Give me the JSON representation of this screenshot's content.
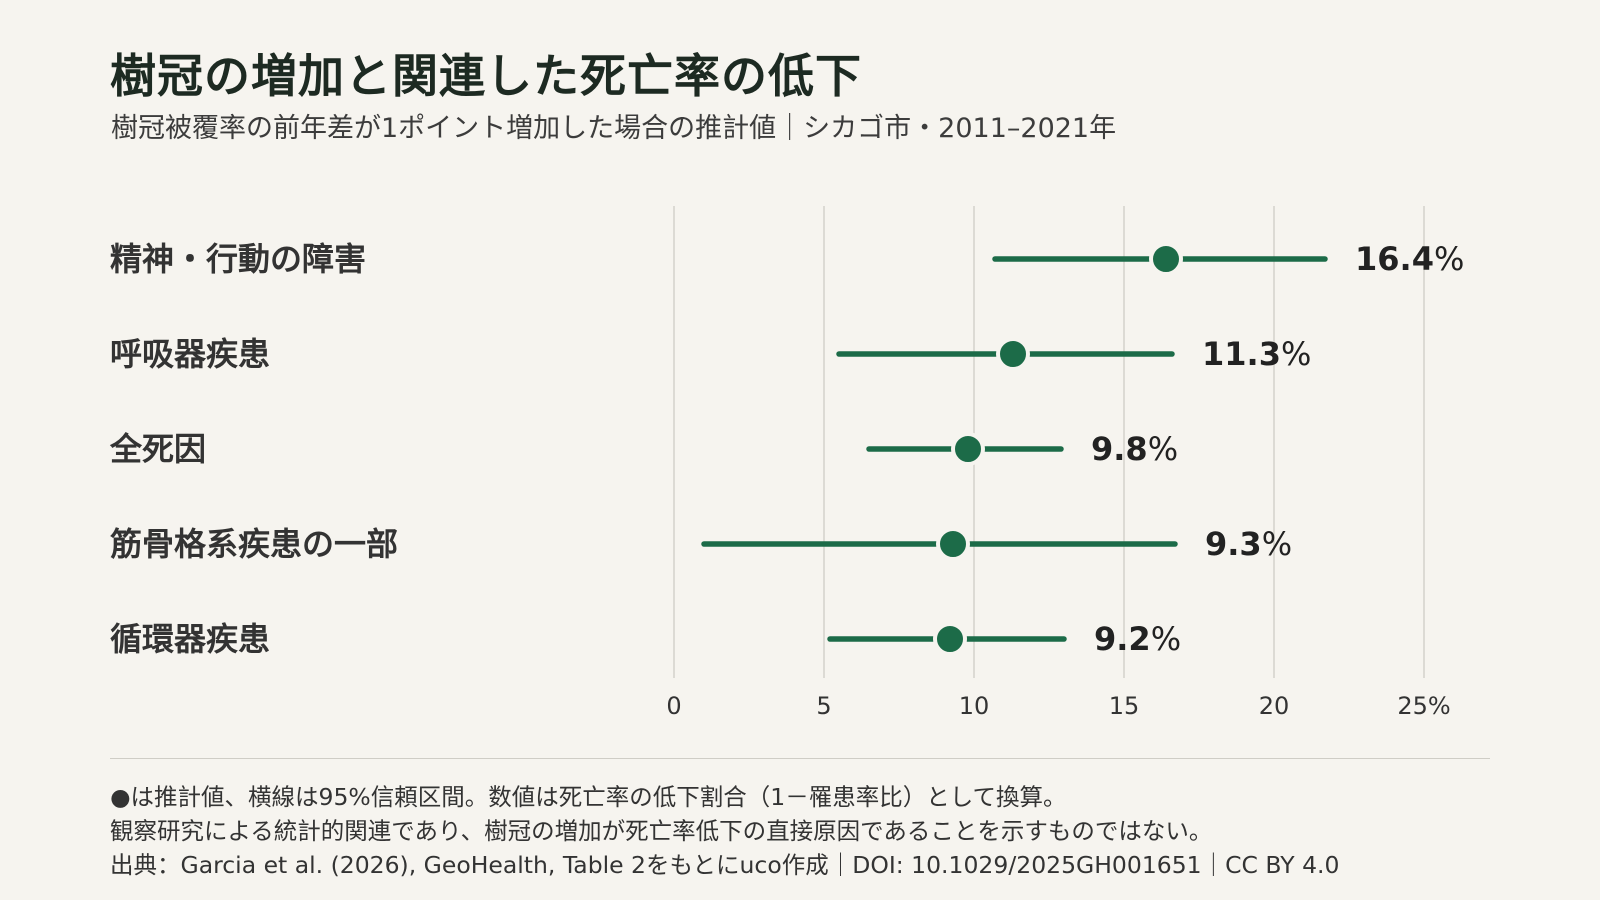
{
  "title": "樹冠の増加と関連した死亡率の低下",
  "subtitle": "樹冠被覆率の前年差が1ポイント増加した場合の推計値｜シカゴ市・2011–2021年",
  "colors": {
    "background": "#f6f4ef",
    "accent": "#1c6b48",
    "grid": "#d3d2cc"
  },
  "chart_data": {
    "type": "scatter",
    "title": "",
    "xlabel": "",
    "ylabel": "",
    "xlim": [
      0,
      25
    ],
    "x_ticks": [
      0,
      5,
      10,
      15,
      20,
      25
    ],
    "x_tick_labels": [
      "0",
      "5",
      "10",
      "15",
      "20",
      "25%"
    ],
    "grid": true,
    "categories": [
      "精神・行動の障害",
      "呼吸器疾患",
      "全死因",
      "筋骨格系疾患の一部",
      "循環器疾患"
    ],
    "estimates": [
      16.4,
      11.3,
      9.8,
      9.3,
      9.2
    ],
    "ci_lower": [
      10.7,
      5.5,
      6.5,
      1.0,
      5.2
    ],
    "ci_upper": [
      21.7,
      16.6,
      12.9,
      16.7,
      13.0
    ],
    "value_labels": [
      "16.4",
      "11.3",
      "9.8",
      "9.3",
      "9.2"
    ],
    "value_unit": "%"
  },
  "notes": {
    "line1": "●は推計値、横線は95%信頼区間。数値は死亡率の低下割合（1－罹患率比）として換算。",
    "line2": "観察研究による統計的関連であり、樹冠の増加が死亡率低下の直接原因であることを示すものではない。",
    "line3": "出典：Garcia et al. (2026), GeoHealth, Table 2をもとにuco作成｜DOI: 10.1029/2025GH001651｜CC BY 4.0"
  }
}
